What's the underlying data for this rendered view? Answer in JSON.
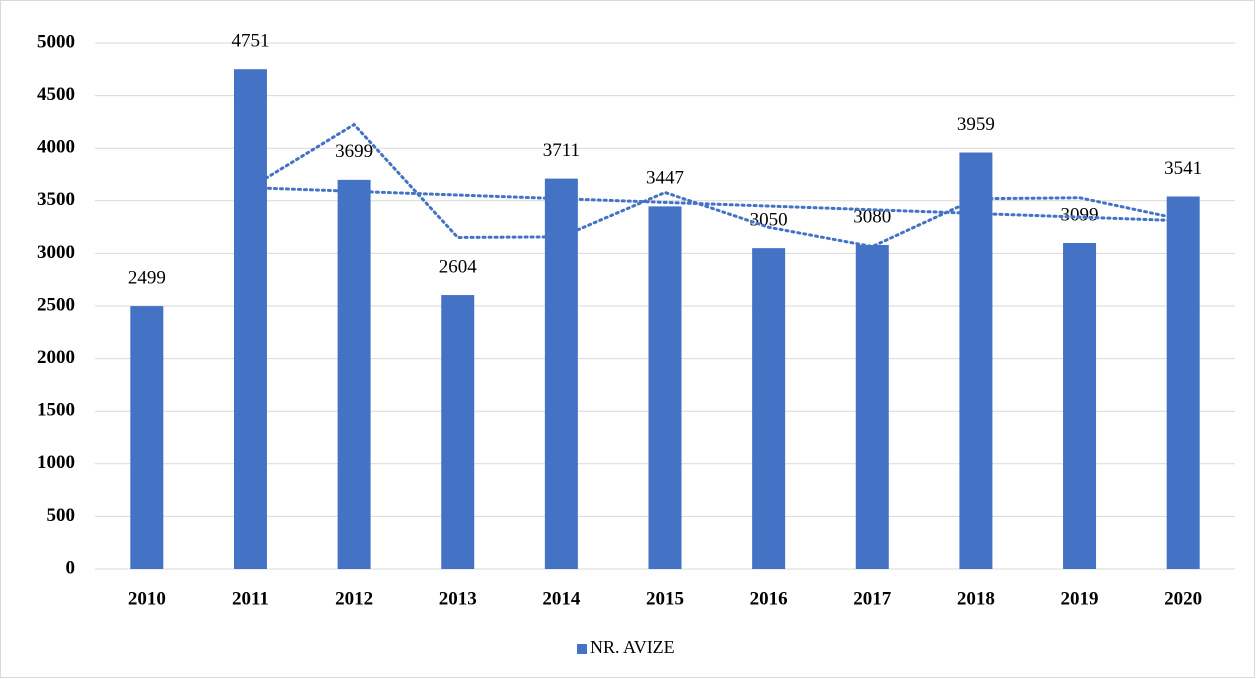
{
  "chart_data": {
    "type": "bar",
    "categories": [
      "2010",
      "2011",
      "2012",
      "2013",
      "2014",
      "2015",
      "2016",
      "2017",
      "2018",
      "2019",
      "2020"
    ],
    "series": [
      {
        "name": "NR. AVIZE",
        "color": "#4472c4",
        "values": [
          2499,
          4751,
          3699,
          2604,
          3711,
          3447,
          3050,
          3080,
          3959,
          3099,
          3541
        ]
      }
    ],
    "moving_average": {
      "color": "#4472c4",
      "values": [
        null,
        3625,
        4225,
        3151.5,
        3157.5,
        3579,
        3248.5,
        3065,
        3519.5,
        3529,
        3320
      ]
    },
    "linear_trend": {
      "color": "#4472c4",
      "values": [
        null,
        3625,
        3590,
        3555,
        3520,
        3485,
        3450,
        3415,
        3380,
        3345,
        3310
      ]
    },
    "ylim": [
      0,
      5000
    ],
    "yticks": [
      0,
      500,
      1000,
      1500,
      2000,
      2500,
      3000,
      3500,
      4000,
      4500,
      5000
    ],
    "grid": true,
    "legend": "bottom"
  }
}
